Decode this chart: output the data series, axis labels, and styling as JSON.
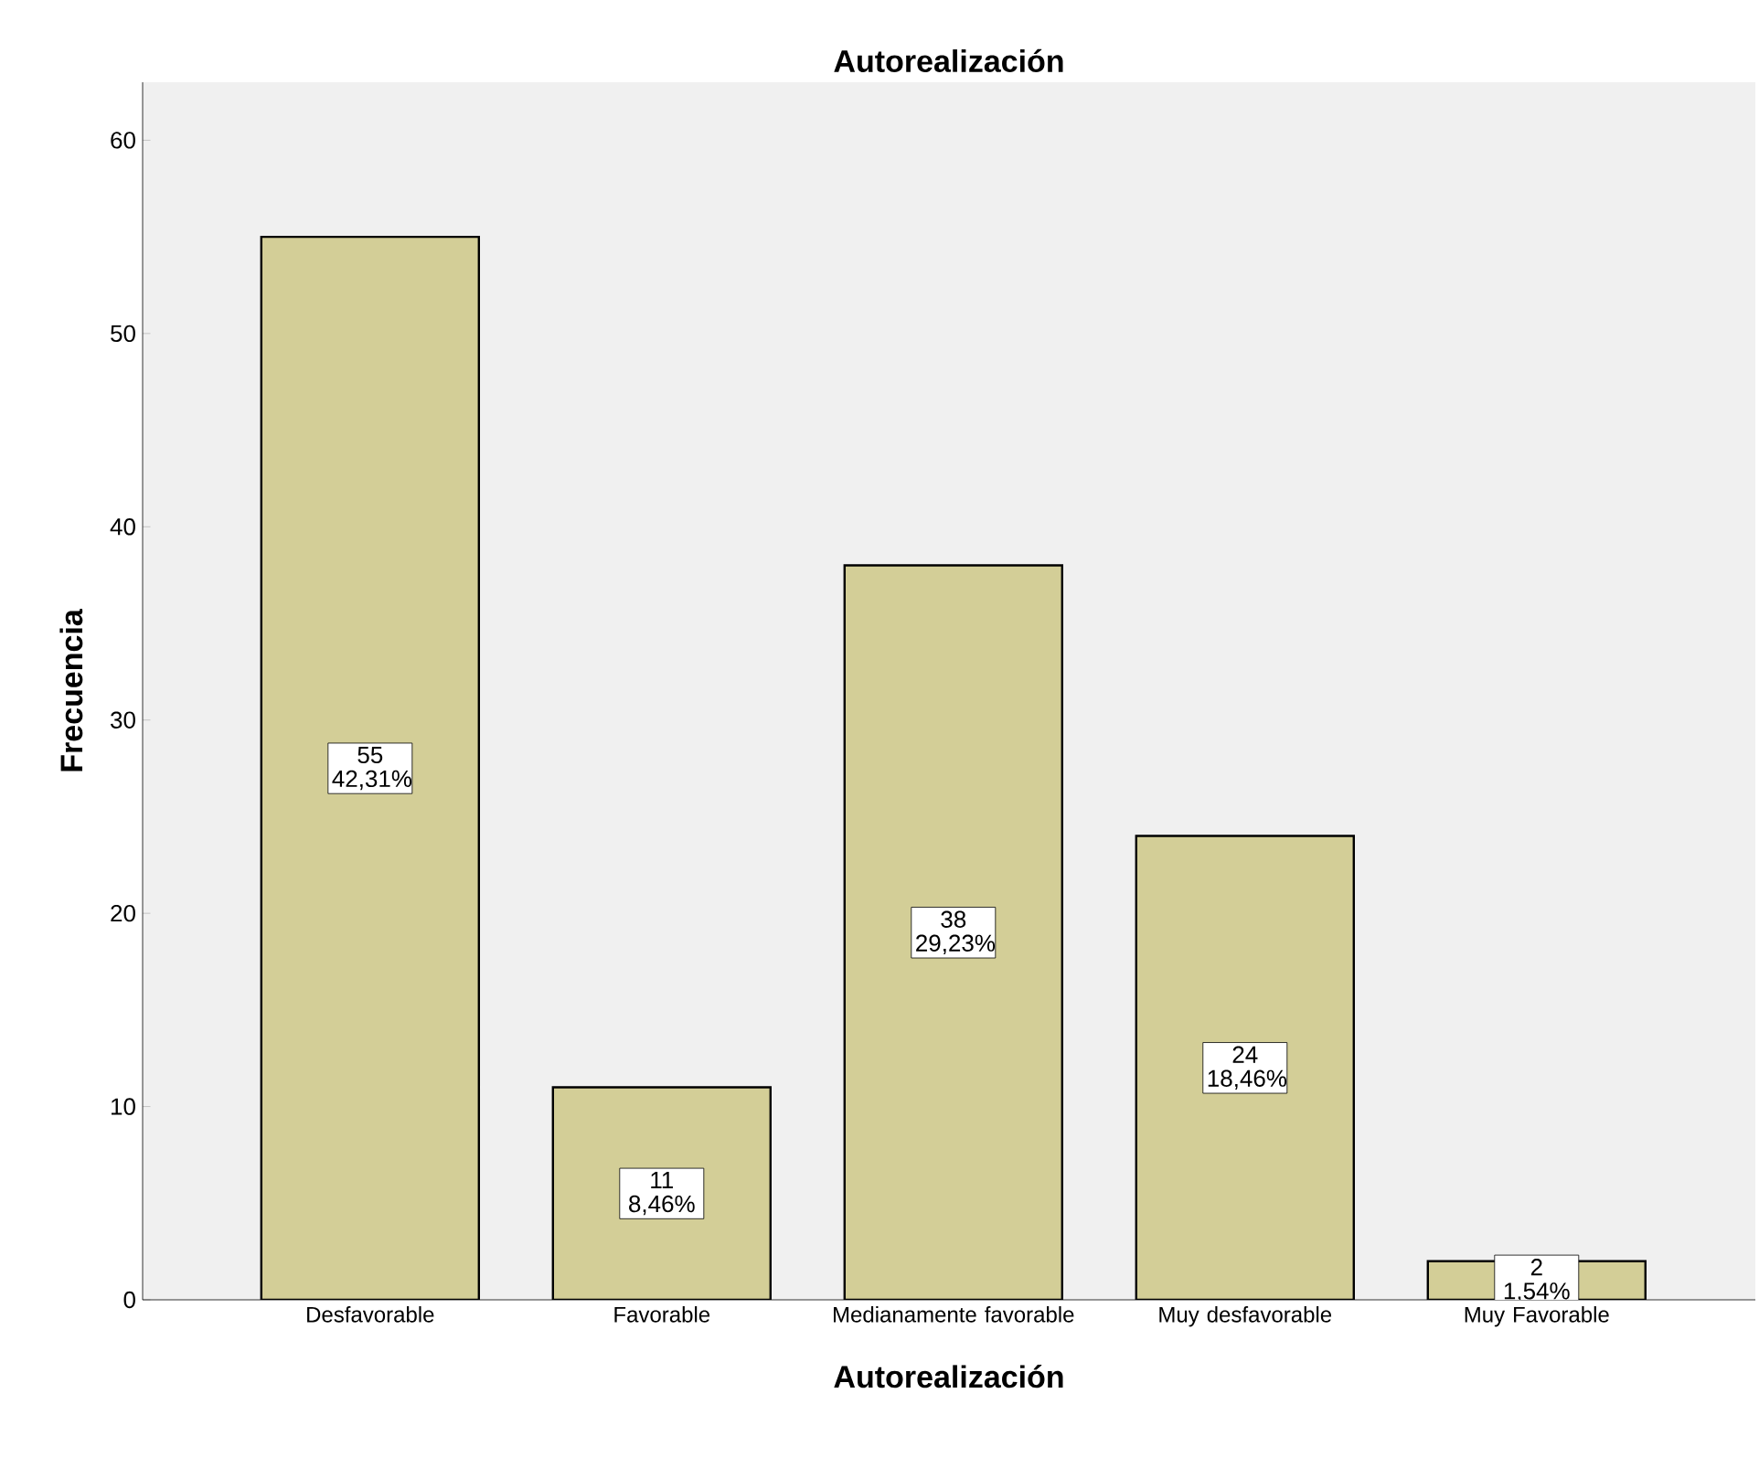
{
  "chart_data": {
    "type": "bar",
    "title": "Autorealización",
    "xlabel": "Autorealización",
    "ylabel": "Frecuencia",
    "categories": [
      "Desfavorable",
      "Favorable",
      "Medianamente favorable",
      "Muy desfavorable",
      "Muy Favorable"
    ],
    "values": [
      55,
      11,
      38,
      24,
      2
    ],
    "value_labels": [
      "55 42,31%",
      "11 8,46%",
      "38 29,23%",
      "24 18,46%",
      "2 1,54%"
    ],
    "color": "#d3ce97",
    "ylim": [
      0,
      63
    ],
    "yticks": [
      0,
      10,
      20,
      30,
      40,
      50,
      60
    ],
    "grid": false
  }
}
